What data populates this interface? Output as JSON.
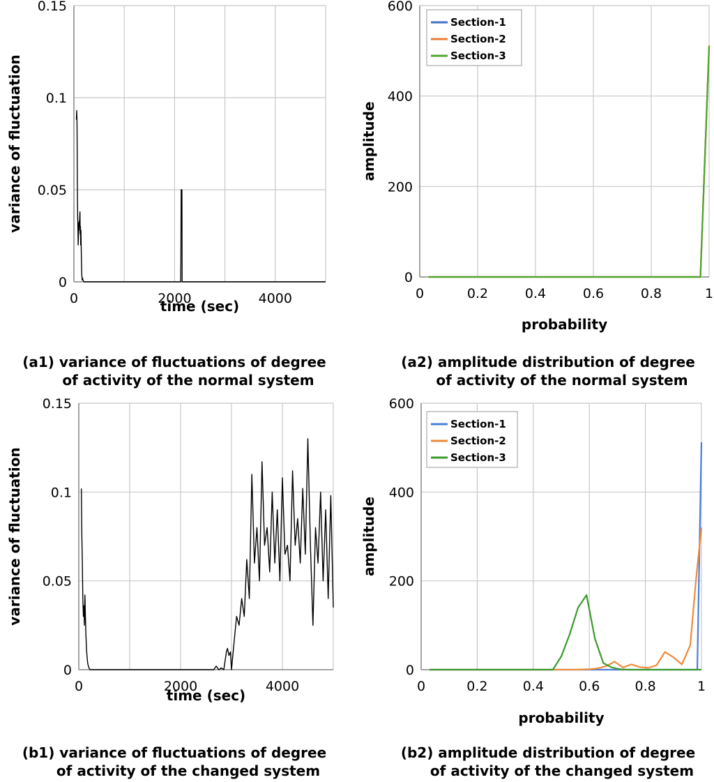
{
  "chart_data": [
    {
      "id": "a1",
      "type": "line",
      "caption_line1": "(a1) variance of fluctuations of degree",
      "caption_line2": "of activity of the normal system",
      "xlabel": "time (sec)",
      "ylabel": "variance of fluctuation",
      "xlim": [
        0,
        5000
      ],
      "ylim": [
        0,
        0.15
      ],
      "xticks": [
        0,
        1000,
        2000,
        3000,
        4000,
        5000
      ],
      "xtick_labels": [
        "0",
        "",
        "2000",
        "",
        "4000",
        ""
      ],
      "yticks": [
        0,
        0.05,
        0.1,
        0.15
      ],
      "ytick_labels": [
        "0",
        "0.05",
        "0.1",
        "0.15"
      ],
      "grid": true,
      "series": [
        {
          "name": "variance",
          "color": "#000000",
          "x": [
            50,
            55,
            60,
            62,
            65,
            68,
            70,
            75,
            80,
            85,
            90,
            95,
            100,
            105,
            110,
            115,
            120,
            125,
            130,
            135,
            140,
            145,
            150,
            155,
            160,
            165,
            170,
            180,
            200,
            250,
            500,
            1000,
            1500,
            2000,
            2100,
            2110,
            2120,
            2125,
            2130,
            2135,
            2140,
            2145,
            2150,
            2160,
            2170,
            2200,
            3000,
            4000,
            5000
          ],
          "y": [
            0.088,
            0.093,
            0.09,
            0.085,
            0.07,
            0.055,
            0.045,
            0.035,
            0.028,
            0.02,
            0.025,
            0.032,
            0.028,
            0.033,
            0.03,
            0.035,
            0.038,
            0.026,
            0.03,
            0.02,
            0.028,
            0.018,
            0.012,
            0.005,
            0.002,
            0.001,
            0.002,
            0.001,
            0.0,
            0.0,
            0.0,
            0.0,
            0.0,
            0.0,
            0.0,
            0.0,
            0.0,
            0.01,
            0.05,
            0.048,
            0.045,
            0.05,
            0.0,
            0.0,
            0.0,
            0.0,
            0.0,
            0.0,
            0.0
          ]
        }
      ]
    },
    {
      "id": "a2",
      "type": "line",
      "caption_line1": "(a2) amplitude distribution of degree",
      "caption_line2": "of activity of the normal system",
      "xlabel": "probability",
      "ylabel": "amplitude",
      "xlim": [
        0,
        1
      ],
      "ylim": [
        0,
        600
      ],
      "xticks": [
        0,
        0.2,
        0.4,
        0.6,
        0.8,
        1
      ],
      "xtick_labels": [
        "0",
        "0.2",
        "0.4",
        "0.6",
        "0.8",
        "1"
      ],
      "yticks": [
        0,
        200,
        400,
        600
      ],
      "ytick_labels": [
        "0",
        "200",
        "400",
        "600"
      ],
      "grid": true,
      "legend_position": "top-left",
      "series": [
        {
          "name": "Section-1",
          "color": "#4472c4",
          "x": [
            0.03,
            0.5,
            0.97,
            1.0
          ],
          "y": [
            0,
            0,
            0,
            510
          ]
        },
        {
          "name": "Section-2",
          "color": "#ed7d31",
          "x": [
            0.03,
            0.5,
            0.97,
            1.0
          ],
          "y": [
            0,
            0,
            0,
            512
          ]
        },
        {
          "name": "Section-3",
          "color": "#4ea72a",
          "x": [
            0.03,
            0.5,
            0.97,
            1.0
          ],
          "y": [
            0,
            0,
            0,
            511
          ]
        }
      ]
    },
    {
      "id": "b1",
      "type": "line",
      "caption_line1": "(b1) variance of fluctuations of degree",
      "caption_line2": "of activity of the changed system",
      "xlabel": "time (sec)",
      "ylabel": "variance of fluctuation",
      "xlim": [
        0,
        5000
      ],
      "ylim": [
        0,
        0.15
      ],
      "xticks": [
        0,
        1000,
        2000,
        3000,
        4000,
        5000
      ],
      "xtick_labels": [
        "0",
        "",
        "2000",
        "",
        "4000",
        ""
      ],
      "yticks": [
        0,
        0.05,
        0.1,
        0.15
      ],
      "ytick_labels": [
        "0",
        "0.05",
        "0.1",
        "0.15"
      ],
      "grid": true,
      "series": [
        {
          "name": "variance",
          "color": "#000000",
          "x": [
            50,
            55,
            60,
            70,
            80,
            90,
            100,
            110,
            120,
            130,
            140,
            150,
            160,
            170,
            180,
            200,
            220,
            250,
            500,
            1000,
            1500,
            2000,
            2500,
            2650,
            2700,
            2750,
            2800,
            2850,
            2900,
            2920,
            2950,
            2980,
            3000,
            3050,
            3100,
            3150,
            3200,
            3250,
            3300,
            3350,
            3400,
            3450,
            3500,
            3550,
            3600,
            3650,
            3700,
            3750,
            3800,
            3850,
            3900,
            3950,
            4000,
            4050,
            4100,
            4150,
            4200,
            4250,
            4300,
            4350,
            4400,
            4450,
            4500,
            4550,
            4600,
            4650,
            4700,
            4750,
            4800,
            4850,
            4900,
            4950,
            5000
          ],
          "y": [
            0.102,
            0.09,
            0.075,
            0.06,
            0.04,
            0.03,
            0.036,
            0.025,
            0.042,
            0.03,
            0.02,
            0.012,
            0.008,
            0.005,
            0.003,
            0.001,
            0.0,
            0.0,
            0.0,
            0.0,
            0.0,
            0.0,
            0.0,
            0.0,
            0.002,
            0.0,
            0.001,
            0.0,
            0.01,
            0.012,
            0.008,
            0.01,
            0.0,
            0.015,
            0.03,
            0.025,
            0.04,
            0.03,
            0.062,
            0.04,
            0.11,
            0.06,
            0.08,
            0.05,
            0.117,
            0.07,
            0.08,
            0.055,
            0.1,
            0.06,
            0.09,
            0.05,
            0.108,
            0.065,
            0.07,
            0.05,
            0.112,
            0.07,
            0.085,
            0.06,
            0.102,
            0.065,
            0.13,
            0.07,
            0.025,
            0.08,
            0.06,
            0.1,
            0.05,
            0.09,
            0.04,
            0.098,
            0.035
          ]
        }
      ]
    },
    {
      "id": "b2",
      "type": "line",
      "caption_line1": "(b2) amplitude distribution of degree",
      "caption_line2": "of activity of the changed system",
      "xlabel": "probability",
      "ylabel": "amplitude",
      "xlim": [
        0,
        1
      ],
      "ylim": [
        0,
        600
      ],
      "xticks": [
        0,
        0.2,
        0.4,
        0.6,
        0.8,
        1
      ],
      "xtick_labels": [
        "0",
        "0.2",
        "0.4",
        "0.6",
        "0.8",
        "1"
      ],
      "yticks": [
        0,
        200,
        400,
        600
      ],
      "ytick_labels": [
        "0",
        "200",
        "400",
        "600"
      ],
      "grid": true,
      "legend_position": "top-left",
      "series": [
        {
          "name": "Section-1",
          "color": "#4a7ed8",
          "x": [
            0.03,
            0.5,
            0.97,
            0.985,
            1.0
          ],
          "y": [
            0,
            0,
            0,
            0,
            512
          ]
        },
        {
          "name": "Section-2",
          "color": "#f08a3a",
          "x": [
            0.03,
            0.4,
            0.5,
            0.55,
            0.6,
            0.63,
            0.66,
            0.69,
            0.72,
            0.75,
            0.78,
            0.81,
            0.84,
            0.87,
            0.9,
            0.93,
            0.96,
            0.98,
            1.0
          ],
          "y": [
            0,
            0,
            0,
            0,
            1,
            3,
            8,
            18,
            5,
            12,
            6,
            4,
            10,
            40,
            28,
            12,
            55,
            200,
            320
          ]
        },
        {
          "name": "Section-3",
          "color": "#3a9a2a",
          "x": [
            0.03,
            0.4,
            0.47,
            0.5,
            0.53,
            0.56,
            0.59,
            0.62,
            0.65,
            0.68,
            0.71,
            0.74,
            0.77,
            0.8,
            1.0
          ],
          "y": [
            0,
            0,
            0,
            30,
            80,
            140,
            168,
            70,
            15,
            5,
            1,
            0,
            0,
            0,
            0
          ]
        }
      ]
    }
  ]
}
